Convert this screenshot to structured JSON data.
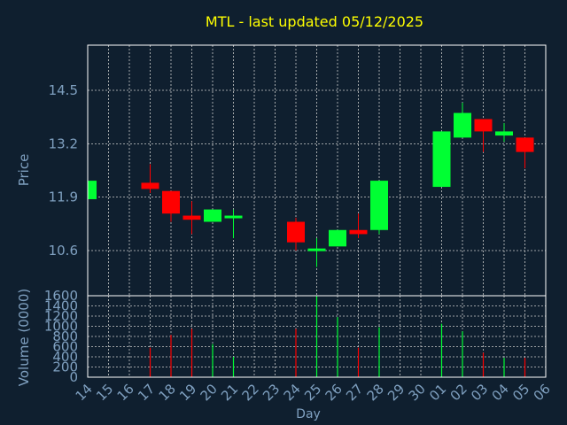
{
  "chart_data": [
    {
      "type": "candlestick",
      "title": "MTL - last updated 05/12/2025",
      "ylabel": "Price",
      "ylim": [
        9.5,
        15.6
      ],
      "y_ticks": [
        "10.6",
        "11.9",
        "13.2",
        "14.5"
      ],
      "grid": true,
      "colors": {
        "up": "#00ff33",
        "down": "#ff0000",
        "title": "#ffff00",
        "axis_label": "#7fa0c0",
        "tick_label": "#7fa0c0",
        "grid": "#cccccc",
        "background": "#0f1f2f",
        "axes": "#ffffff"
      },
      "candles": [
        {
          "day": "14",
          "open": 11.85,
          "close": 12.3,
          "high": 12.3,
          "low": 11.8
        },
        {
          "day": "17",
          "open": 12.25,
          "close": 12.1,
          "high": 12.7,
          "low": 12.0
        },
        {
          "day": "18",
          "open": 12.05,
          "close": 11.5,
          "high": 12.05,
          "low": 11.3
        },
        {
          "day": "19",
          "open": 11.45,
          "close": 11.35,
          "high": 11.8,
          "low": 11.0
        },
        {
          "day": "20",
          "open": 11.3,
          "close": 11.6,
          "high": 11.6,
          "low": 11.3
        },
        {
          "day": "21",
          "open": 11.4,
          "close": 11.45,
          "high": 11.6,
          "low": 10.9
        },
        {
          "day": "24",
          "open": 11.3,
          "close": 10.8,
          "high": 11.4,
          "low": 10.6
        },
        {
          "day": "25",
          "open": 10.6,
          "close": 10.65,
          "high": 10.9,
          "low": 10.2
        },
        {
          "day": "26",
          "open": 10.7,
          "close": 11.1,
          "high": 11.1,
          "low": 10.7
        },
        {
          "day": "27",
          "open": 11.1,
          "close": 11.0,
          "high": 11.5,
          "low": 10.9
        },
        {
          "day": "28",
          "open": 11.1,
          "close": 12.3,
          "high": 12.3,
          "low": 11.0
        },
        {
          "day": "01",
          "open": 12.15,
          "close": 13.5,
          "high": 13.5,
          "low": 12.15
        },
        {
          "day": "02",
          "open": 13.35,
          "close": 13.95,
          "high": 14.2,
          "low": 13.35
        },
        {
          "day": "03",
          "open": 13.8,
          "close": 13.5,
          "high": 13.8,
          "low": 13.0
        },
        {
          "day": "04",
          "open": 13.4,
          "close": 13.5,
          "high": 13.7,
          "low": 13.25
        },
        {
          "day": "05",
          "open": 13.35,
          "close": 13.0,
          "high": 13.35,
          "low": 12.6
        }
      ]
    },
    {
      "type": "bar",
      "ylabel": "Volume (0000)",
      "xlabel": "Day",
      "ylim": [
        0,
        1600
      ],
      "y_ticks": [
        "0",
        "200",
        "400",
        "600",
        "800",
        "1000",
        "1200",
        "1400",
        "1600"
      ],
      "categories": [
        "14",
        "15",
        "16",
        "17",
        "18",
        "19",
        "20",
        "21",
        "22",
        "23",
        "24",
        "25",
        "26",
        "27",
        "28",
        "29",
        "30",
        "01",
        "02",
        "03",
        "04",
        "05",
        "06"
      ],
      "volumes": [
        {
          "day": "17",
          "value": 580,
          "dir": "down"
        },
        {
          "day": "18",
          "value": 830,
          "dir": "down"
        },
        {
          "day": "19",
          "value": 950,
          "dir": "down"
        },
        {
          "day": "20",
          "value": 650,
          "dir": "up"
        },
        {
          "day": "21",
          "value": 400,
          "dir": "up"
        },
        {
          "day": "24",
          "value": 950,
          "dir": "down"
        },
        {
          "day": "25",
          "value": 1600,
          "dir": "up"
        },
        {
          "day": "26",
          "value": 1180,
          "dir": "up"
        },
        {
          "day": "27",
          "value": 580,
          "dir": "down"
        },
        {
          "day": "28",
          "value": 980,
          "dir": "up"
        },
        {
          "day": "01",
          "value": 1050,
          "dir": "up"
        },
        {
          "day": "02",
          "value": 900,
          "dir": "up"
        },
        {
          "day": "03",
          "value": 480,
          "dir": "down"
        },
        {
          "day": "04",
          "value": 380,
          "dir": "up"
        },
        {
          "day": "05",
          "value": 380,
          "dir": "down"
        }
      ]
    }
  ]
}
